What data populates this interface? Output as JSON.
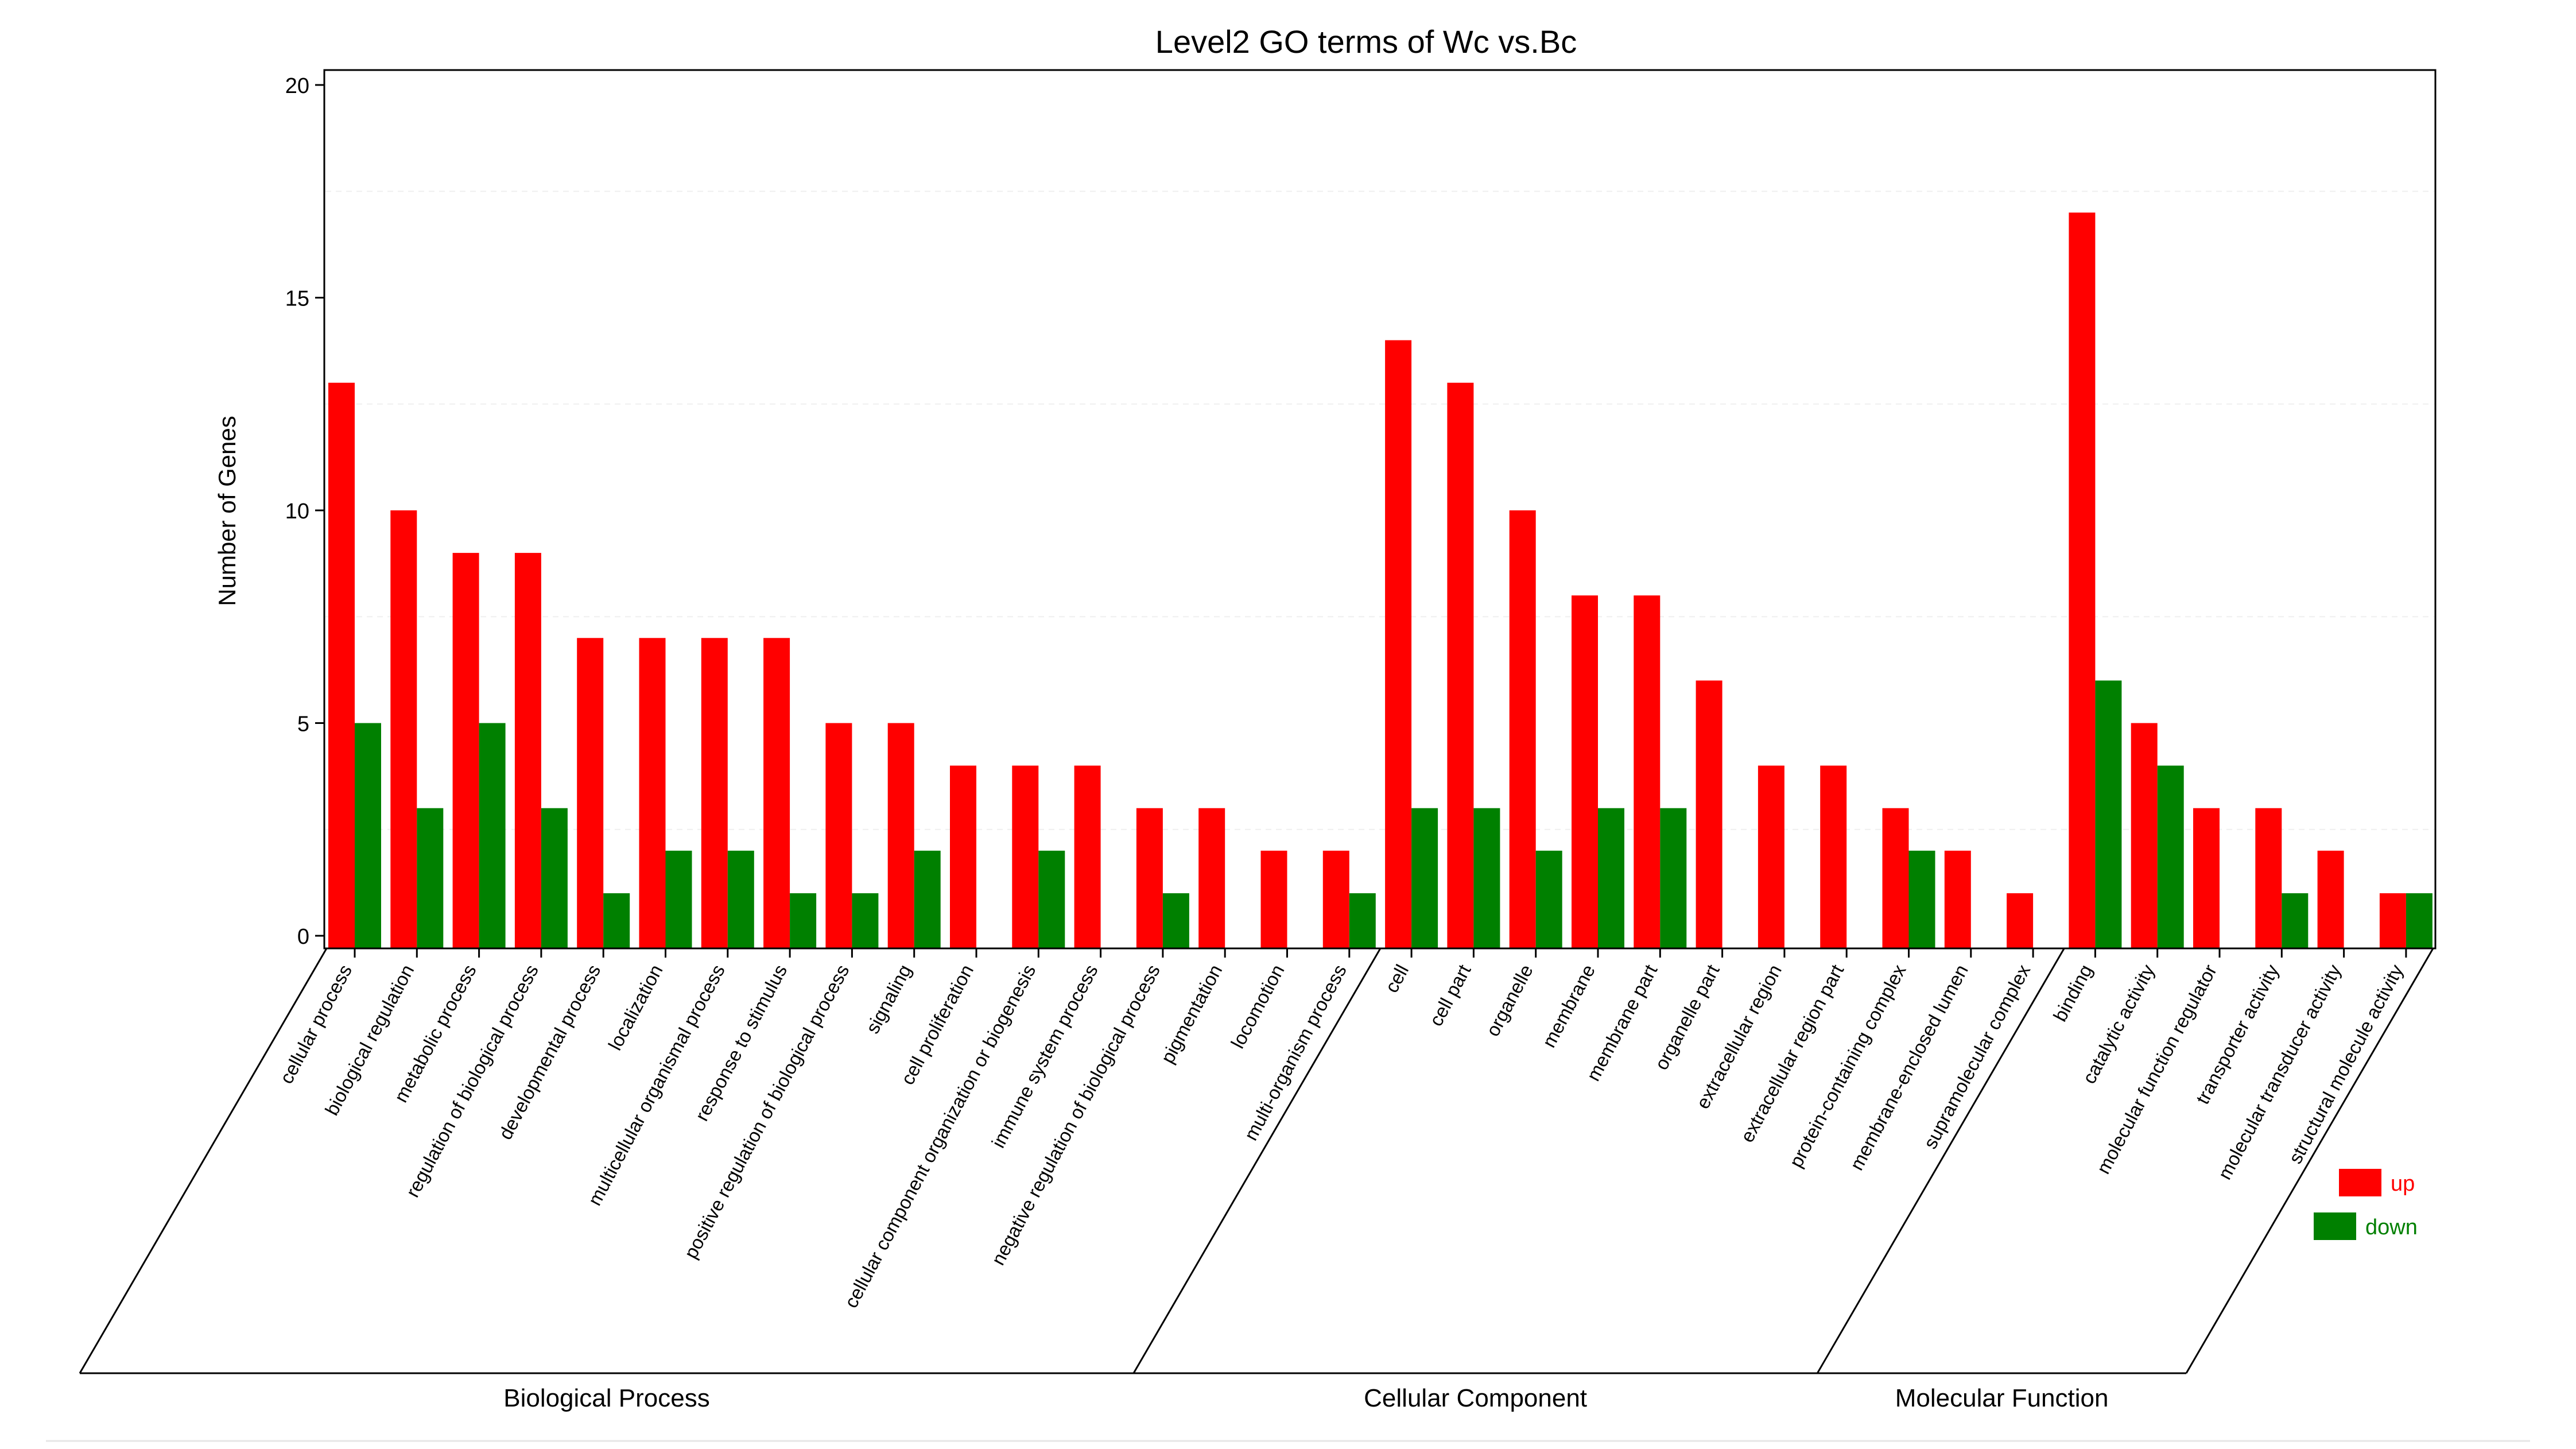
{
  "chart_data": {
    "type": "bar",
    "title": "Level2 GO terms of Wc vs.Bc",
    "ylabel": "Number of Genes",
    "ylim": [
      0,
      20
    ],
    "yticks": [
      0,
      5,
      10,
      15,
      20
    ],
    "legend_position": "bottom-right",
    "colors": {
      "up": "#ff0000",
      "down": "#008000"
    },
    "series": [
      {
        "name": "up",
        "color": "#ff0000",
        "values": [
          13,
          10,
          9,
          9,
          7,
          7,
          7,
          7,
          5,
          5,
          4,
          4,
          4,
          3,
          3,
          2,
          2,
          14,
          13,
          10,
          8,
          8,
          6,
          4,
          4,
          3,
          2,
          1,
          17,
          5,
          3,
          3,
          2,
          1
        ]
      },
      {
        "name": "down",
        "color": "#008000",
        "values": [
          5,
          3,
          5,
          3,
          1,
          2,
          2,
          1,
          1,
          2,
          0,
          2,
          0,
          1,
          0,
          0,
          1,
          3,
          3,
          2,
          3,
          3,
          0,
          0,
          0,
          2,
          0,
          0,
          6,
          4,
          0,
          1,
          0,
          1
        ]
      }
    ],
    "categories": [
      "cellular process",
      "biological regulation",
      "metabolic process",
      "regulation of biological process",
      "developmental process",
      "localization",
      "multicellular organismal process",
      "response to stimulus",
      "positive regulation of biological process",
      "signaling",
      "cell proliferation",
      "cellular component organization or biogenesis",
      "immune system process",
      "negative regulation of biological process",
      "pigmentation",
      "locomotion",
      "multi-organism process",
      "cell",
      "cell part",
      "organelle",
      "membrane",
      "membrane part",
      "organelle part",
      "extracellular region",
      "extracellular region part",
      "protein-containing complex",
      "membrane-enclosed lumen",
      "supramolecular complex",
      "binding",
      "catalytic activity",
      "molecular function regulator",
      "transporter activity",
      "molecular transducer activity",
      "structural molecule activity"
    ],
    "groups": [
      {
        "name": "Biological Process",
        "start": 0,
        "end": 16
      },
      {
        "name": "Cellular Component",
        "start": 17,
        "end": 27
      },
      {
        "name": "Molecular Function",
        "start": 28,
        "end": 33
      }
    ]
  }
}
